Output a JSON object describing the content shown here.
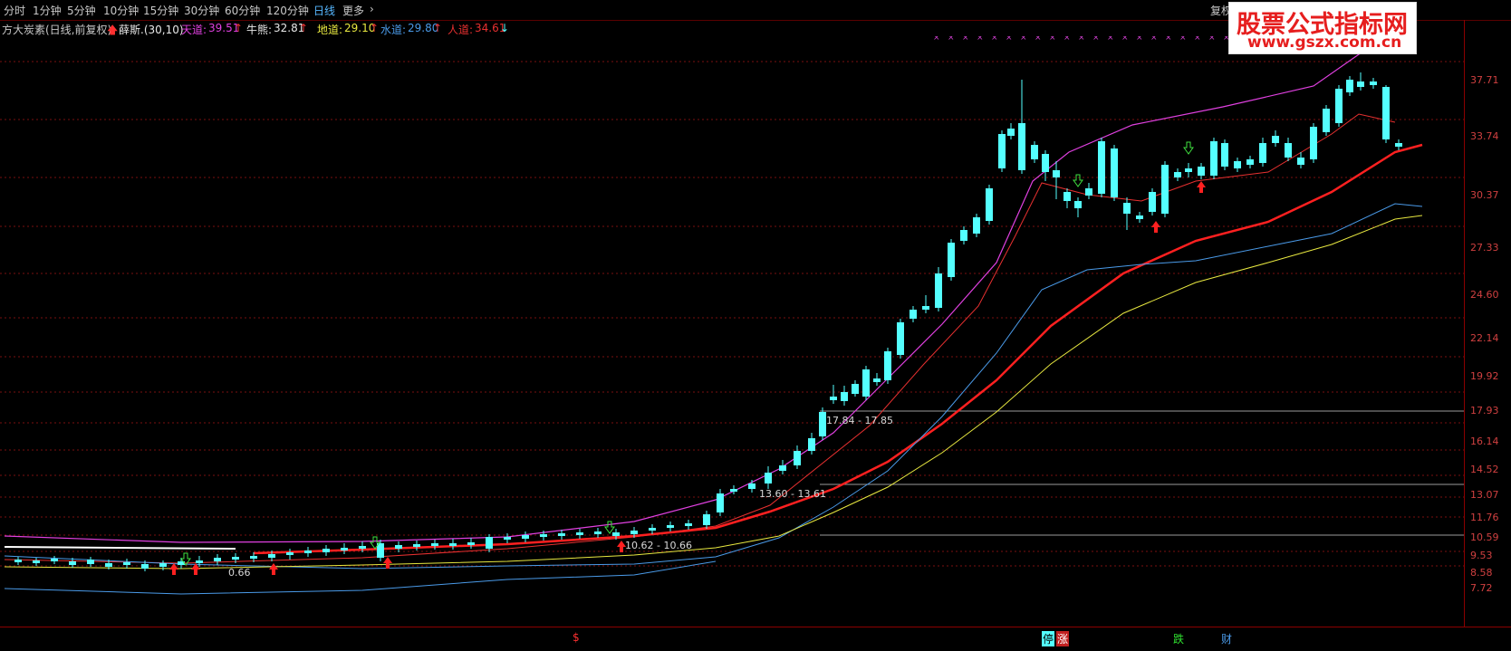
{
  "toolbar": {
    "periods": [
      "分时",
      "1分钟",
      "5分钟",
      "10分钟",
      "15分钟",
      "30分钟",
      "60分钟",
      "120分钟",
      "日线",
      "更多"
    ],
    "active": "日线",
    "more_arrow": "›",
    "fuquan": "复权"
  },
  "indicator": {
    "name": "方大炭素(日线,前复权)",
    "formula": "薛斯.(30,10)",
    "items": [
      {
        "label": "天道:",
        "value": "39.51",
        "arrow": "↑",
        "color": "#e040e0"
      },
      {
        "label": "牛熊:",
        "value": "32.81",
        "arrow": "↑",
        "color": "#e8e8e8"
      },
      {
        "label": "地道:",
        "value": "29.10",
        "arrow": "↑",
        "color": "#e8e840"
      },
      {
        "label": "水道:",
        "value": "29.80",
        "arrow": "↑",
        "color": "#4a9ae8"
      },
      {
        "label": "人道:",
        "value": "34.61",
        "arrow": "↓",
        "color": "#e83030"
      }
    ]
  },
  "watermark": {
    "line1": "股票公式指标网",
    "line2": "www.gszx.com.cn"
  },
  "axis_ticks": [
    "37.71",
    "33.74",
    "30.37",
    "27.33",
    "24.60",
    "22.14",
    "19.92",
    "17.93",
    "16.14",
    "14.52",
    "13.07",
    "11.76",
    "10.59",
    "9.53",
    "8.58",
    "7.72"
  ],
  "annotations": {
    "a1": "17.84 - 17.85",
    "a2": "13.60 - 13.61",
    "a3": "10.62 - 10.66",
    "a4": "0.66"
  },
  "bottom_labels": {
    "s": "$",
    "ting": "停",
    "zhang": "涨",
    "die": "跌",
    "cai": "财"
  },
  "colors": {
    "up": "#ff3232",
    "down": "#54ffff",
    "tiandao": "#e040e0",
    "renxian": "#e83030",
    "shuidao": "#4a9ae8",
    "didao": "#e8e840",
    "niuxiong": "#e8e8e8"
  }
}
